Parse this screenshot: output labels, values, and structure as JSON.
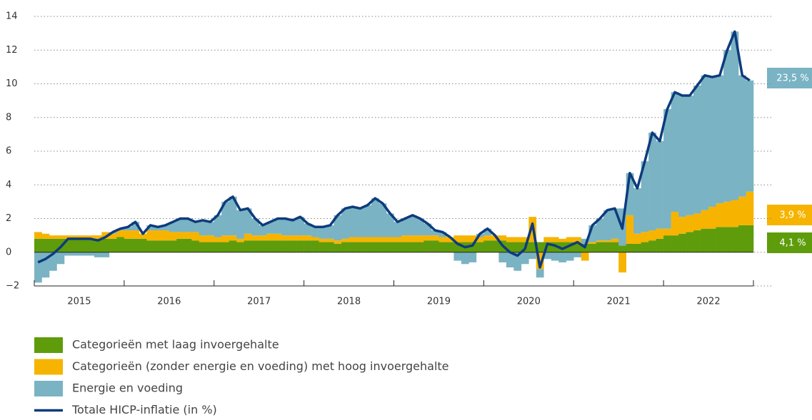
{
  "chart_data": {
    "type": "bar",
    "stacked": true,
    "categories": [
      null,
      null,
      null,
      null,
      null,
      null,
      "2015",
      null,
      null,
      null,
      null,
      null,
      null,
      null,
      null,
      null,
      null,
      null,
      "2016",
      null,
      null,
      null,
      null,
      null,
      null,
      null,
      null,
      null,
      null,
      null,
      "2017",
      null,
      null,
      null,
      null,
      null,
      null,
      null,
      null,
      null,
      null,
      null,
      "2018",
      null,
      null,
      null,
      null,
      null,
      null,
      null,
      null,
      null,
      null,
      null,
      "2019",
      null,
      null,
      null,
      null,
      null,
      null,
      null,
      null,
      null,
      null,
      null,
      "2020",
      null,
      null,
      null,
      null,
      null,
      null,
      null,
      null,
      null,
      null,
      null,
      "2021",
      null,
      null,
      null,
      null,
      null,
      null,
      null,
      null,
      null,
      null,
      null,
      "2022",
      null,
      null,
      null,
      null,
      null
    ],
    "series": [
      {
        "name": "Categorieën met laag invoergehalte",
        "color": "#5e9c0b",
        "values": [
          0.8,
          0.8,
          0.8,
          0.8,
          0.8,
          0.8,
          0.8,
          0.8,
          0.8,
          0.8,
          0.8,
          0.9,
          0.8,
          0.8,
          0.8,
          0.7,
          0.7,
          0.7,
          0.7,
          0.8,
          0.8,
          0.7,
          0.6,
          0.6,
          0.6,
          0.6,
          0.7,
          0.6,
          0.7,
          0.7,
          0.7,
          0.7,
          0.7,
          0.7,
          0.7,
          0.7,
          0.7,
          0.7,
          0.6,
          0.6,
          0.5,
          0.6,
          0.6,
          0.6,
          0.6,
          0.6,
          0.6,
          0.6,
          0.6,
          0.6,
          0.6,
          0.6,
          0.7,
          0.7,
          0.6,
          0.6,
          0.6,
          0.6,
          0.6,
          0.6,
          0.7,
          0.7,
          0.7,
          0.6,
          0.6,
          0.6,
          0.6,
          0.6,
          0.6,
          0.6,
          0.6,
          0.6,
          0.5,
          0.5,
          0.5,
          0.6,
          0.6,
          0.6,
          0.4,
          0.5,
          0.5,
          0.6,
          0.7,
          0.8,
          1.0,
          1.0,
          1.1,
          1.2,
          1.3,
          1.4,
          1.4,
          1.5,
          1.5,
          1.5,
          1.6,
          1.6
        ]
      },
      {
        "name": "Categorieën (zonder energie en voeding) met hoog invoergehalte",
        "color": "#f6b400",
        "values": [
          0.4,
          0.3,
          0.2,
          0.2,
          0.2,
          0.2,
          0.2,
          0.2,
          0.2,
          0.4,
          0.3,
          0.4,
          0.5,
          0.5,
          0.3,
          0.6,
          0.6,
          0.6,
          0.5,
          0.4,
          0.4,
          0.5,
          0.4,
          0.4,
          0.3,
          0.4,
          0.3,
          0.2,
          0.4,
          0.3,
          0.3,
          0.4,
          0.4,
          0.3,
          0.3,
          0.3,
          0.3,
          0.2,
          0.2,
          0.2,
          0.2,
          0.2,
          0.3,
          0.3,
          0.3,
          0.3,
          0.3,
          0.3,
          0.3,
          0.4,
          0.4,
          0.4,
          0.3,
          0.3,
          0.3,
          0.3,
          0.4,
          0.4,
          0.4,
          0.3,
          0.3,
          0.3,
          0.3,
          0.3,
          0.3,
          0.3,
          1.5,
          -1.0,
          0.3,
          0.3,
          0.2,
          0.3,
          0.4,
          -0.5,
          0.1,
          0.1,
          0.1,
          0.2,
          -1.2,
          1.7,
          0.6,
          0.6,
          0.6,
          0.6,
          0.4,
          1.4,
          1.0,
          1.0,
          1.0,
          1.1,
          1.3,
          1.4,
          1.5,
          1.6,
          1.7,
          2.0
        ]
      },
      {
        "name": "Energie en voeding",
        "color": "#7ab3c3",
        "values": [
          -1.8,
          -1.5,
          -1.1,
          -0.7,
          -0.2,
          -0.2,
          -0.2,
          -0.2,
          -0.3,
          -0.3,
          0.1,
          0.1,
          0.2,
          0.5,
          0.0,
          0.3,
          0.2,
          0.3,
          0.6,
          0.8,
          0.8,
          0.6,
          0.9,
          0.8,
          1.3,
          2.0,
          2.3,
          1.7,
          1.5,
          1.0,
          0.6,
          0.7,
          0.9,
          1.0,
          0.9,
          1.1,
          0.7,
          0.6,
          0.7,
          0.8,
          1.5,
          1.8,
          1.8,
          1.7,
          1.9,
          2.3,
          2.0,
          1.4,
          0.9,
          1.0,
          1.2,
          1.0,
          0.7,
          0.3,
          0.3,
          0.0,
          -0.5,
          -0.7,
          -0.6,
          0.2,
          0.4,
          0.0,
          -0.6,
          -0.9,
          -1.1,
          -0.7,
          -0.4,
          -0.5,
          -0.4,
          -0.5,
          -0.6,
          -0.5,
          -0.3,
          0.3,
          1.0,
          1.3,
          1.8,
          1.8,
          2.2,
          2.5,
          2.7,
          4.2,
          5.8,
          5.2,
          7.1,
          7.1,
          7.2,
          7.1,
          7.6,
          8.0,
          7.7,
          7.6,
          9.0,
          10.0,
          7.2,
          6.6
        ]
      },
      {
        "name": "Totale HICP-inflatie (in %)",
        "type": "line",
        "color": "#0d3b7c",
        "values": [
          -0.6,
          -0.4,
          -0.1,
          0.3,
          0.8,
          0.8,
          0.8,
          0.8,
          0.7,
          0.9,
          1.2,
          1.4,
          1.5,
          1.8,
          1.1,
          1.6,
          1.5,
          1.6,
          1.8,
          2.0,
          2.0,
          1.8,
          1.9,
          1.8,
          2.2,
          3.0,
          3.3,
          2.5,
          2.6,
          2.0,
          1.6,
          1.8,
          2.0,
          2.0,
          1.9,
          2.1,
          1.7,
          1.5,
          1.5,
          1.6,
          2.2,
          2.6,
          2.7,
          2.6,
          2.8,
          3.2,
          2.9,
          2.3,
          1.8,
          2.0,
          2.2,
          2.0,
          1.7,
          1.3,
          1.2,
          0.9,
          0.5,
          0.3,
          0.4,
          1.1,
          1.4,
          1.0,
          0.4,
          0.0,
          -0.2,
          0.2,
          1.7,
          -0.9,
          0.5,
          0.4,
          0.2,
          0.4,
          0.6,
          0.3,
          1.6,
          2.0,
          2.5,
          2.6,
          1.4,
          4.7,
          3.8,
          5.4,
          7.1,
          6.6,
          8.5,
          9.5,
          9.3,
          9.3,
          9.9,
          10.5,
          10.4,
          10.5,
          12.0,
          13.1,
          10.5,
          10.2
        ]
      }
    ],
    "annotations": [
      "23,5 %",
      "3,9 %",
      "4,1 %"
    ],
    "ylim": [
      -2,
      14
    ],
    "yticks": [
      {
        "value": -2,
        "label": "−2"
      },
      0,
      2,
      4,
      6,
      8,
      10,
      12,
      14
    ],
    "grid": true
  }
}
